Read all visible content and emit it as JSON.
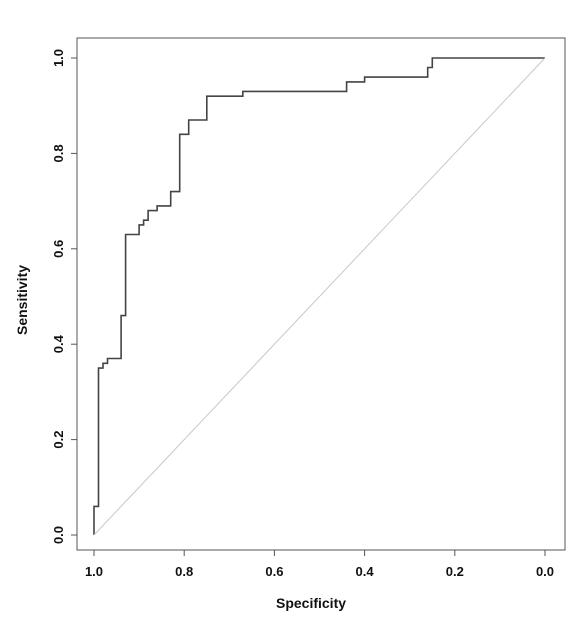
{
  "chart_data": {
    "type": "line",
    "title": "",
    "xlabel": "Specificity",
    "ylabel": "Sensitivity",
    "x_reversed": true,
    "xlim": [
      1.0,
      0.0
    ],
    "ylim": [
      0.0,
      1.0
    ],
    "x_ticks": [
      1.0,
      0.8,
      0.6,
      0.4,
      0.2,
      0.0
    ],
    "x_tick_labels": [
      "1.0",
      "0.8",
      "0.6",
      "0.4",
      "0.2",
      "0.0"
    ],
    "y_ticks": [
      0.0,
      0.2,
      0.4,
      0.6,
      0.8,
      1.0
    ],
    "y_tick_labels": [
      "0.0",
      "0.2",
      "0.4",
      "0.6",
      "0.8",
      "1.0"
    ],
    "grid": false,
    "legend": "none",
    "series": [
      {
        "color": "#444444",
        "step": true,
        "x": [
          1.0,
          1.0,
          0.99,
          0.99,
          0.98,
          0.98,
          0.97,
          0.97,
          0.94,
          0.94,
          0.93,
          0.93,
          0.9,
          0.9,
          0.89,
          0.89,
          0.88,
          0.88,
          0.86,
          0.86,
          0.83,
          0.83,
          0.81,
          0.81,
          0.79,
          0.79,
          0.78,
          0.78,
          0.75,
          0.75,
          0.67,
          0.67,
          0.44,
          0.44,
          0.4,
          0.4,
          0.26,
          0.26,
          0.25,
          0.25,
          0.0
        ],
        "y": [
          0.0,
          0.06,
          0.06,
          0.35,
          0.35,
          0.36,
          0.36,
          0.37,
          0.37,
          0.46,
          0.46,
          0.63,
          0.63,
          0.65,
          0.65,
          0.66,
          0.66,
          0.68,
          0.68,
          0.69,
          0.69,
          0.72,
          0.72,
          0.84,
          0.84,
          0.87,
          0.87,
          0.87,
          0.87,
          0.92,
          0.92,
          0.93,
          0.93,
          0.95,
          0.95,
          0.96,
          0.96,
          0.98,
          0.98,
          1.0,
          1.0
        ]
      },
      {
        "color": "#c8c8c8",
        "x": [
          1.0,
          0.0
        ],
        "y": [
          0.0,
          1.0
        ]
      }
    ]
  }
}
